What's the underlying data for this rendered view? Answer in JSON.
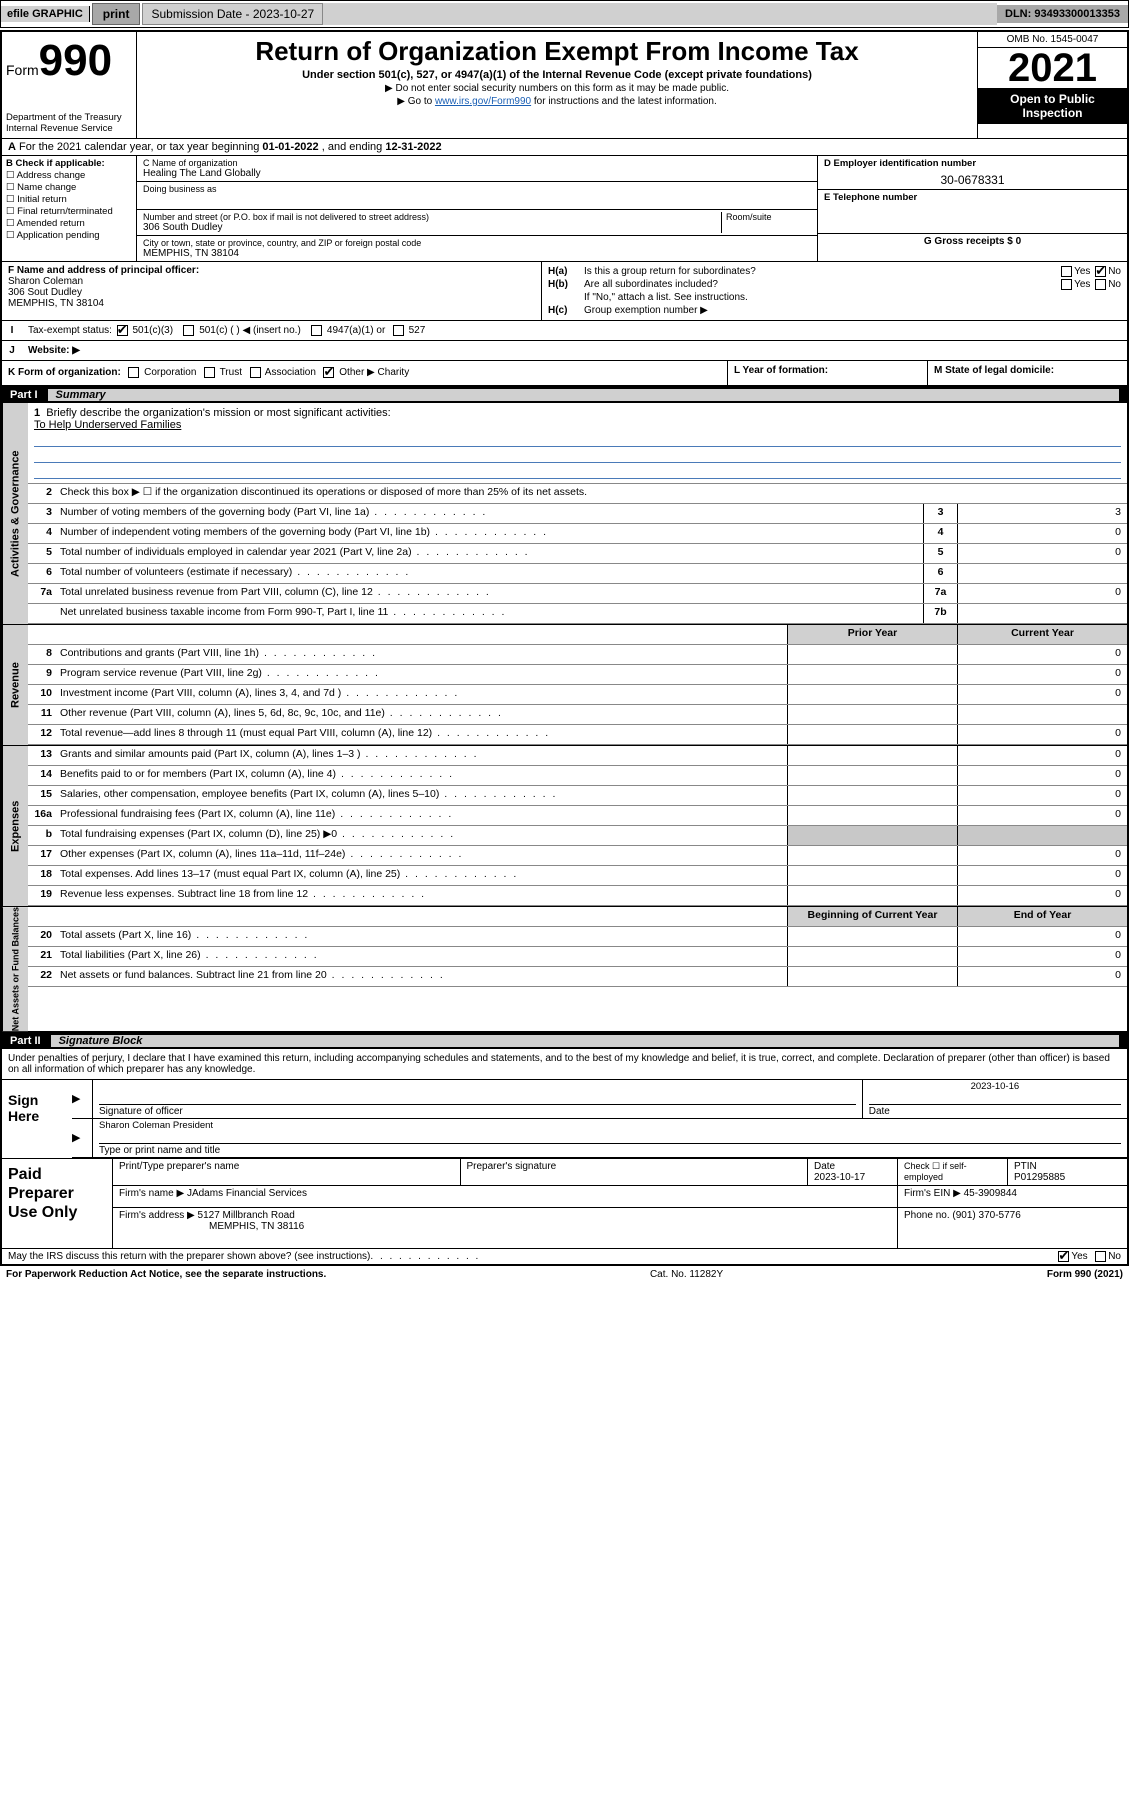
{
  "topbar": {
    "efile": "efile GRAPHIC",
    "print": "print",
    "submission_label": "Submission Date - 2023-10-27",
    "dln_label": "DLN: 93493300013353"
  },
  "header": {
    "form_prefix": "Form",
    "form_number": "990",
    "dept": "Department of the Treasury",
    "irs": "Internal Revenue Service",
    "title": "Return of Organization Exempt From Income Tax",
    "sub": "Under section 501(c), 527, or 4947(a)(1) of the Internal Revenue Code (except private foundations)",
    "note1": "▶ Do not enter social security numbers on this form as it may be made public.",
    "note2_pre": "▶ Go to ",
    "note2_link": "www.irs.gov/Form990",
    "note2_post": " for instructions and the latest information.",
    "omb": "OMB No. 1545-0047",
    "year": "2021",
    "open_public1": "Open to Public",
    "open_public2": "Inspection"
  },
  "A": {
    "text_pre": "For the 2021 calendar year, or tax year beginning ",
    "begin": "01-01-2022",
    "mid": " , and ending ",
    "end": "12-31-2022"
  },
  "B": {
    "title": "B Check if applicable:",
    "items": [
      "Address change",
      "Name change",
      "Initial return",
      "Final return/terminated",
      "Amended return",
      "Application pending"
    ]
  },
  "C": {
    "name_lbl": "C Name of organization",
    "name": "Healing The Land Globally",
    "dba_lbl": "Doing business as",
    "dba": "",
    "street_lbl": "Number and street (or P.O. box if mail is not delivered to street address)",
    "room_lbl": "Room/suite",
    "street": "306 South Dudley",
    "city_lbl": "City or town, state or province, country, and ZIP or foreign postal code",
    "city": "MEMPHIS, TN  38104"
  },
  "D": {
    "lbl": "D Employer identification number",
    "val": "30-0678331"
  },
  "E": {
    "lbl": "E Telephone number",
    "val": ""
  },
  "G": {
    "lbl": "G Gross receipts $ 0"
  },
  "F": {
    "lbl": "F  Name and address of principal officer:",
    "name": "Sharon Coleman",
    "street": "306 Sout Dudley",
    "city": "MEMPHIS, TN  38104"
  },
  "H": {
    "a": "Is this a group return for subordinates?",
    "b": "Are all subordinates included?",
    "no_note": "If \"No,\" attach a list. See instructions.",
    "c_lbl": "Group exemption number ▶"
  },
  "I": {
    "lbl": "Tax-exempt status:",
    "opts": [
      "501(c)(3)",
      "501(c) (  ) ◀ (insert no.)",
      "4947(a)(1) or",
      "527"
    ]
  },
  "J": {
    "lbl": "Website: ▶"
  },
  "K": {
    "lbl": "K Form of organization:",
    "opts": [
      "Corporation",
      "Trust",
      "Association",
      "Other ▶"
    ],
    "other_val": "Charity"
  },
  "L": {
    "lbl": "L Year of formation:"
  },
  "M": {
    "lbl": "M State of legal domicile:"
  },
  "partI": {
    "num": "Part I",
    "title": "Summary"
  },
  "summary": {
    "line1_lbl": "Briefly describe the organization's mission or most significant activities:",
    "line1_val": "To Help Underserved Families",
    "line2": "Check this box ▶ ☐  if the organization discontinued its operations or disposed of more than 25% of its net assets.",
    "rows_gov": [
      {
        "n": "3",
        "d": "Number of voting members of the governing body (Part VI, line 1a)",
        "box": "3",
        "v": "3"
      },
      {
        "n": "4",
        "d": "Number of independent voting members of the governing body (Part VI, line 1b)",
        "box": "4",
        "v": "0"
      },
      {
        "n": "5",
        "d": "Total number of individuals employed in calendar year 2021 (Part V, line 2a)",
        "box": "5",
        "v": "0"
      },
      {
        "n": "6",
        "d": "Total number of volunteers (estimate if necessary)",
        "box": "6",
        "v": ""
      },
      {
        "n": "7a",
        "d": "Total unrelated business revenue from Part VIII, column (C), line 12",
        "box": "7a",
        "v": "0"
      },
      {
        "n": "",
        "d": "Net unrelated business taxable income from Form 990-T, Part I, line 11",
        "box": "7b",
        "v": ""
      }
    ],
    "col_prior": "Prior Year",
    "col_current": "Current Year",
    "rows_rev": [
      {
        "n": "8",
        "d": "Contributions and grants (Part VIII, line 1h)",
        "p": "",
        "c": "0"
      },
      {
        "n": "9",
        "d": "Program service revenue (Part VIII, line 2g)",
        "p": "",
        "c": "0"
      },
      {
        "n": "10",
        "d": "Investment income (Part VIII, column (A), lines 3, 4, and 7d )",
        "p": "",
        "c": "0"
      },
      {
        "n": "11",
        "d": "Other revenue (Part VIII, column (A), lines 5, 6d, 8c, 9c, 10c, and 11e)",
        "p": "",
        "c": ""
      },
      {
        "n": "12",
        "d": "Total revenue—add lines 8 through 11 (must equal Part VIII, column (A), line 12)",
        "p": "",
        "c": "0"
      }
    ],
    "rows_exp": [
      {
        "n": "13",
        "d": "Grants and similar amounts paid (Part IX, column (A), lines 1–3 )",
        "p": "",
        "c": "0"
      },
      {
        "n": "14",
        "d": "Benefits paid to or for members (Part IX, column (A), line 4)",
        "p": "",
        "c": "0"
      },
      {
        "n": "15",
        "d": "Salaries, other compensation, employee benefits (Part IX, column (A), lines 5–10)",
        "p": "",
        "c": "0"
      },
      {
        "n": "16a",
        "d": "Professional fundraising fees (Part IX, column (A), line 11e)",
        "p": "",
        "c": "0"
      },
      {
        "n": "b",
        "d": "Total fundraising expenses (Part IX, column (D), line 25) ▶0",
        "p": "shaded",
        "c": "shaded"
      },
      {
        "n": "17",
        "d": "Other expenses (Part IX, column (A), lines 11a–11d, 11f–24e)",
        "p": "",
        "c": "0"
      },
      {
        "n": "18",
        "d": "Total expenses. Add lines 13–17 (must equal Part IX, column (A), line 25)",
        "p": "",
        "c": "0"
      },
      {
        "n": "19",
        "d": "Revenue less expenses. Subtract line 18 from line 12",
        "p": "",
        "c": "0"
      }
    ],
    "col_begin": "Beginning of Current Year",
    "col_end": "End of Year",
    "rows_net": [
      {
        "n": "20",
        "d": "Total assets (Part X, line 16)",
        "p": "",
        "c": "0"
      },
      {
        "n": "21",
        "d": "Total liabilities (Part X, line 26)",
        "p": "",
        "c": "0"
      },
      {
        "n": "22",
        "d": "Net assets or fund balances. Subtract line 21 from line 20",
        "p": "",
        "c": "0"
      }
    ],
    "tabs": {
      "gov": "Activities & Governance",
      "rev": "Revenue",
      "exp": "Expenses",
      "net": "Net Assets or Fund Balances"
    }
  },
  "partII": {
    "num": "Part II",
    "title": "Signature Block"
  },
  "sig": {
    "decl": "Under penalties of perjury, I declare that I have examined this return, including accompanying schedules and statements, and to the best of my knowledge and belief, it is true, correct, and complete. Declaration of preparer (other than officer) is based on all information of which preparer has any knowledge.",
    "sign_here": "Sign Here",
    "sig_officer_lbl": "Signature of officer",
    "date_lbl": "Date",
    "date_val": "2023-10-16",
    "name_title": "Sharon Coleman  President",
    "name_title_lbl": "Type or print name and title"
  },
  "paid": {
    "title": "Paid Preparer Use Only",
    "h1": "Print/Type preparer's name",
    "h2": "Preparer's signature",
    "h3": "Date",
    "date": "2023-10-17",
    "h4_chk": "Check ☐ if self-employed",
    "h5": "PTIN",
    "ptin": "P01295885",
    "firm_name_lbl": "Firm's name    ▶",
    "firm_name": "JAdams Financial Services",
    "firm_ein_lbl": "Firm's EIN ▶",
    "firm_ein": "45-3909844",
    "firm_addr_lbl": "Firm's address ▶",
    "firm_addr1": "5127 Millbranch Road",
    "firm_addr2": "MEMPHIS, TN  38116",
    "phone_lbl": "Phone no.",
    "phone": "(901) 370-5776"
  },
  "footer": {
    "discuss": "May the IRS discuss this return with the preparer shown above? (see instructions)",
    "paperwork": "For Paperwork Reduction Act Notice, see the separate instructions.",
    "cat": "Cat. No. 11282Y",
    "formref": "Form 990 (2021)"
  }
}
